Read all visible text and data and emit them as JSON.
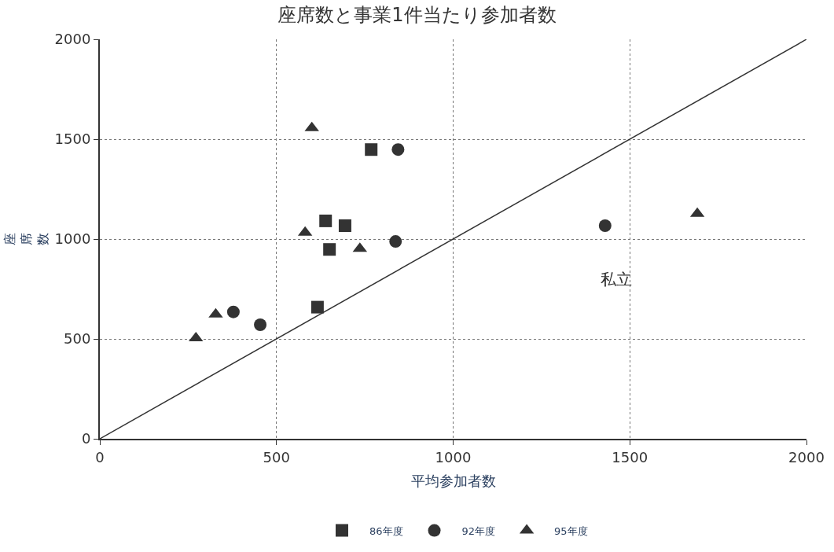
{
  "chart_data": {
    "type": "scatter",
    "title": "座席数と事業1件当たり参加者数",
    "xlabel": "平均参加者数",
    "ylabel": "座席数",
    "xlim": [
      0,
      2000
    ],
    "ylim": [
      0,
      2000
    ],
    "xticks": [
      0,
      500,
      1000,
      1500,
      2000
    ],
    "yticks": [
      0,
      500,
      1000,
      1500,
      2000
    ],
    "grid": true,
    "legend": "bottom",
    "series": [
      {
        "name": "86年度",
        "color": "#333333",
        "marker": "square",
        "x": [
          768,
          639,
          694,
          650,
          616
        ],
        "values": [
          1448,
          1091,
          1067,
          948,
          659
        ]
      },
      {
        "name": "92年度",
        "color": "#333333",
        "marker": "circle",
        "x": [
          844,
          837,
          378,
          454,
          1430
        ],
        "values": [
          1448,
          988,
          635,
          571,
          1067
        ]
      },
      {
        "name": "95年度",
        "color": "#333333",
        "marker": "triangle",
        "x": [
          600,
          581,
          736,
          328,
          272,
          1691
        ],
        "values": [
          1556,
          1032,
          952,
          623,
          504,
          1127
        ]
      },
      {
        "type": "line",
        "color": "#333333",
        "marker": "none",
        "line_style": "solid",
        "x": [
          0,
          2000
        ],
        "values": [
          0,
          2000
        ]
      }
    ],
    "annotations": [
      "私立"
    ]
  }
}
